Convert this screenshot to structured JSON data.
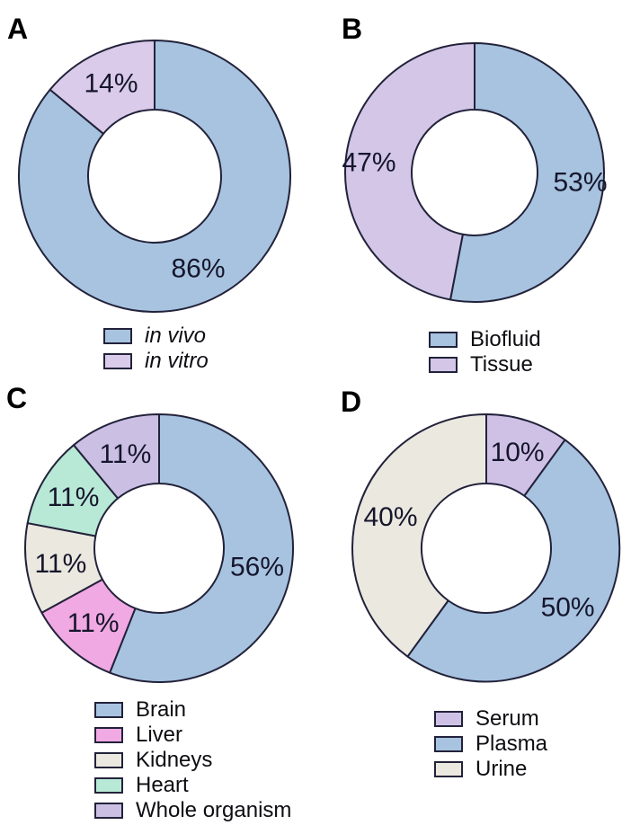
{
  "figure": {
    "background": "#ffffff",
    "stroke_color": "#22223a",
    "label_color": "#16162c"
  },
  "chart_data": [
    {
      "type": "pie",
      "variant": "donut",
      "panel_label": "A",
      "legend_style": "italic",
      "legend_position": "bottom",
      "slices": [
        {
          "label": "in vivo",
          "value": 86,
          "display": "86%",
          "color": "#a7c3e0"
        },
        {
          "label": "in vitro",
          "value": 14,
          "display": "14%",
          "color": "#d9cbe9"
        }
      ]
    },
    {
      "type": "pie",
      "variant": "donut",
      "panel_label": "B",
      "legend_style": "normal",
      "legend_position": "bottom",
      "slices": [
        {
          "label": "Biofluid",
          "value": 53,
          "display": "53%",
          "color": "#a7c3e0"
        },
        {
          "label": "Tissue",
          "value": 47,
          "display": "47%",
          "color": "#d3c6e7"
        }
      ]
    },
    {
      "type": "pie",
      "variant": "donut",
      "panel_label": "C",
      "legend_style": "normal",
      "legend_position": "bottom",
      "slices": [
        {
          "label": "Brain",
          "value": 56,
          "display": "56%",
          "color": "#a7c3e0"
        },
        {
          "label": "Liver",
          "value": 11,
          "display": "11%",
          "color": "#f0a9e2"
        },
        {
          "label": "Kidneys",
          "value": 11,
          "display": "11%",
          "color": "#ebe8e0"
        },
        {
          "label": "Heart",
          "value": 11,
          "display": "11%",
          "color": "#b8e8d6"
        },
        {
          "label": "Whole organism",
          "value": 11,
          "display": "11%",
          "color": "#cbbfe4"
        }
      ]
    },
    {
      "type": "pie",
      "variant": "donut",
      "panel_label": "D",
      "legend_style": "normal",
      "legend_position": "bottom",
      "slices": [
        {
          "label": "Serum",
          "value": 10,
          "display": "10%",
          "color": "#cfc1e6"
        },
        {
          "label": "Plasma",
          "value": 50,
          "display": "50%",
          "color": "#a7c3e0"
        },
        {
          "label": "Urine",
          "value": 40,
          "display": "40%",
          "color": "#ebe8e0"
        }
      ]
    }
  ]
}
